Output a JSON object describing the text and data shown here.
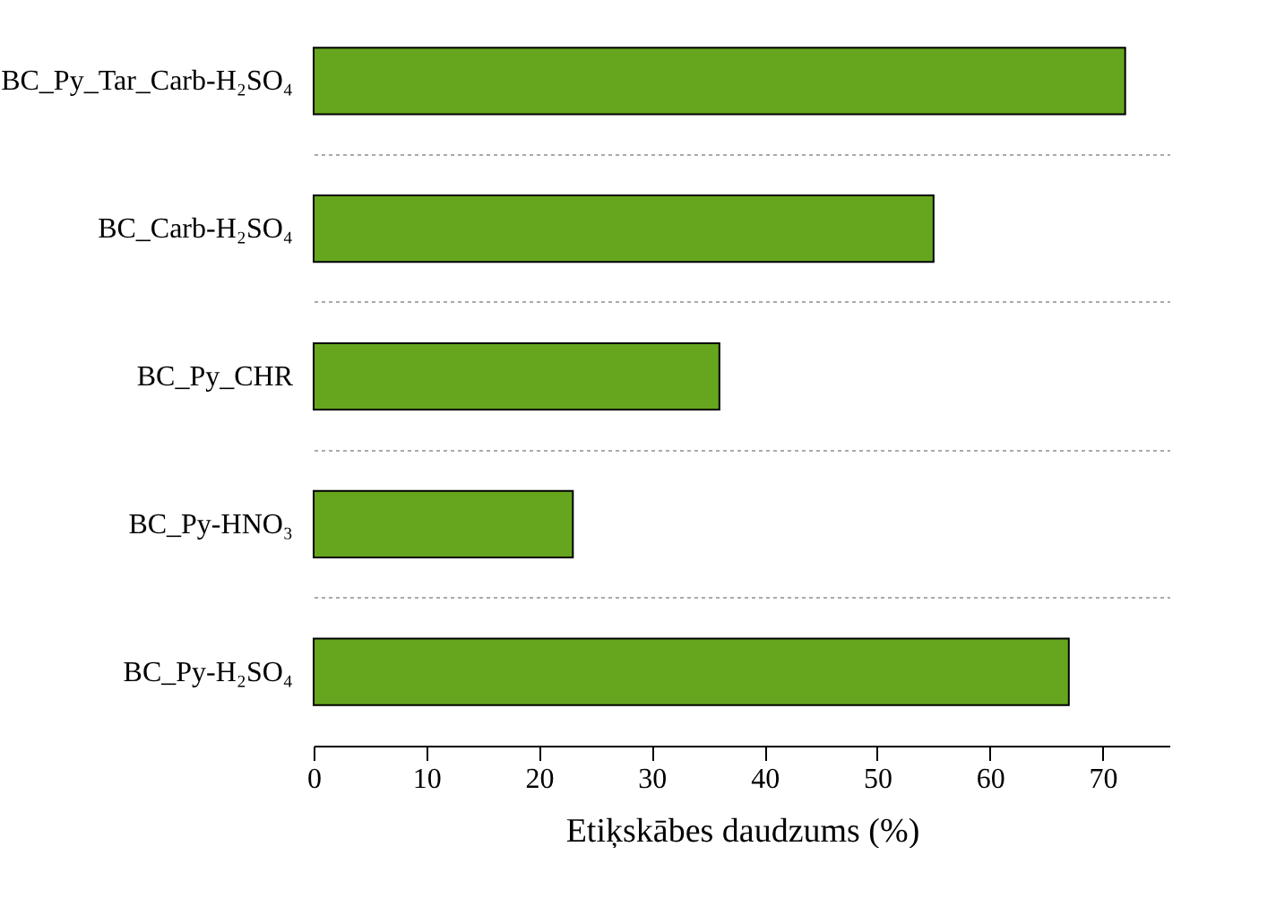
{
  "chart_data": {
    "type": "bar",
    "orientation": "horizontal",
    "categories": [
      "BC_Py_Tar_Carb-H₂SO₄",
      "BC_Carb-H₂SO₄",
      "BC_Py_CHR",
      "BC_Py-HNO₃",
      "BC_Py-H₂SO₄"
    ],
    "values": [
      72,
      55,
      36,
      23,
      67
    ],
    "color": "#66a61e",
    "xlabel": "Etiķskābes daudzums (%)",
    "xlim": [
      0,
      76
    ],
    "xticks": [
      0,
      10,
      20,
      30,
      40,
      50,
      60,
      70
    ],
    "grid": "y"
  }
}
